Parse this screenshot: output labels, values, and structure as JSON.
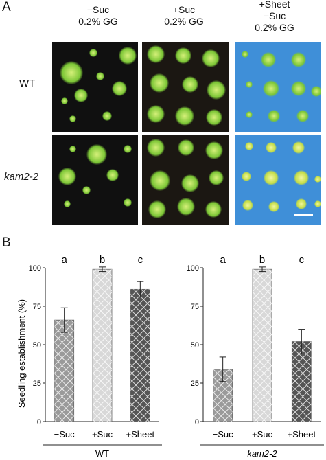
{
  "panel_a": {
    "label": "A",
    "columns": [
      {
        "line1": "−Suc",
        "line2": "0.2% GG"
      },
      {
        "line1": "+Suc",
        "line2": "0.2% GG"
      },
      {
        "line1": "+Sheet",
        "line2": "−Suc",
        "line3": "0.2% GG"
      }
    ],
    "rows": [
      {
        "label": "WT"
      },
      {
        "label": "kam2-2"
      }
    ]
  },
  "panel_b": {
    "label": "B",
    "ylabel": "Seedling establishment (%)"
  },
  "chart_data": [
    {
      "type": "bar",
      "group": "WT",
      "categories": [
        "−Suc",
        "+Suc",
        "+Sheet"
      ],
      "values": [
        66,
        99,
        86
      ],
      "errors": [
        8,
        1.5,
        5
      ],
      "significance": [
        "a",
        "b",
        "c"
      ],
      "ylim": [
        0,
        100
      ],
      "yticks": [
        "0",
        "25",
        "50",
        "75",
        "100"
      ],
      "bar_colors": [
        "#9a9a9a",
        "#d8d8d8",
        "#555555"
      ]
    },
    {
      "type": "bar",
      "group": "kam2-2",
      "categories": [
        "−Suc",
        "+Suc",
        "+Sheet"
      ],
      "values": [
        34,
        99,
        52
      ],
      "errors": [
        8,
        1.5,
        8
      ],
      "significance": [
        "a",
        "b",
        "c"
      ],
      "ylim": [
        0,
        100
      ],
      "yticks": [
        "0",
        "25",
        "50",
        "75",
        "100"
      ],
      "bar_colors": [
        "#9a9a9a",
        "#d8d8d8",
        "#555555"
      ]
    }
  ]
}
